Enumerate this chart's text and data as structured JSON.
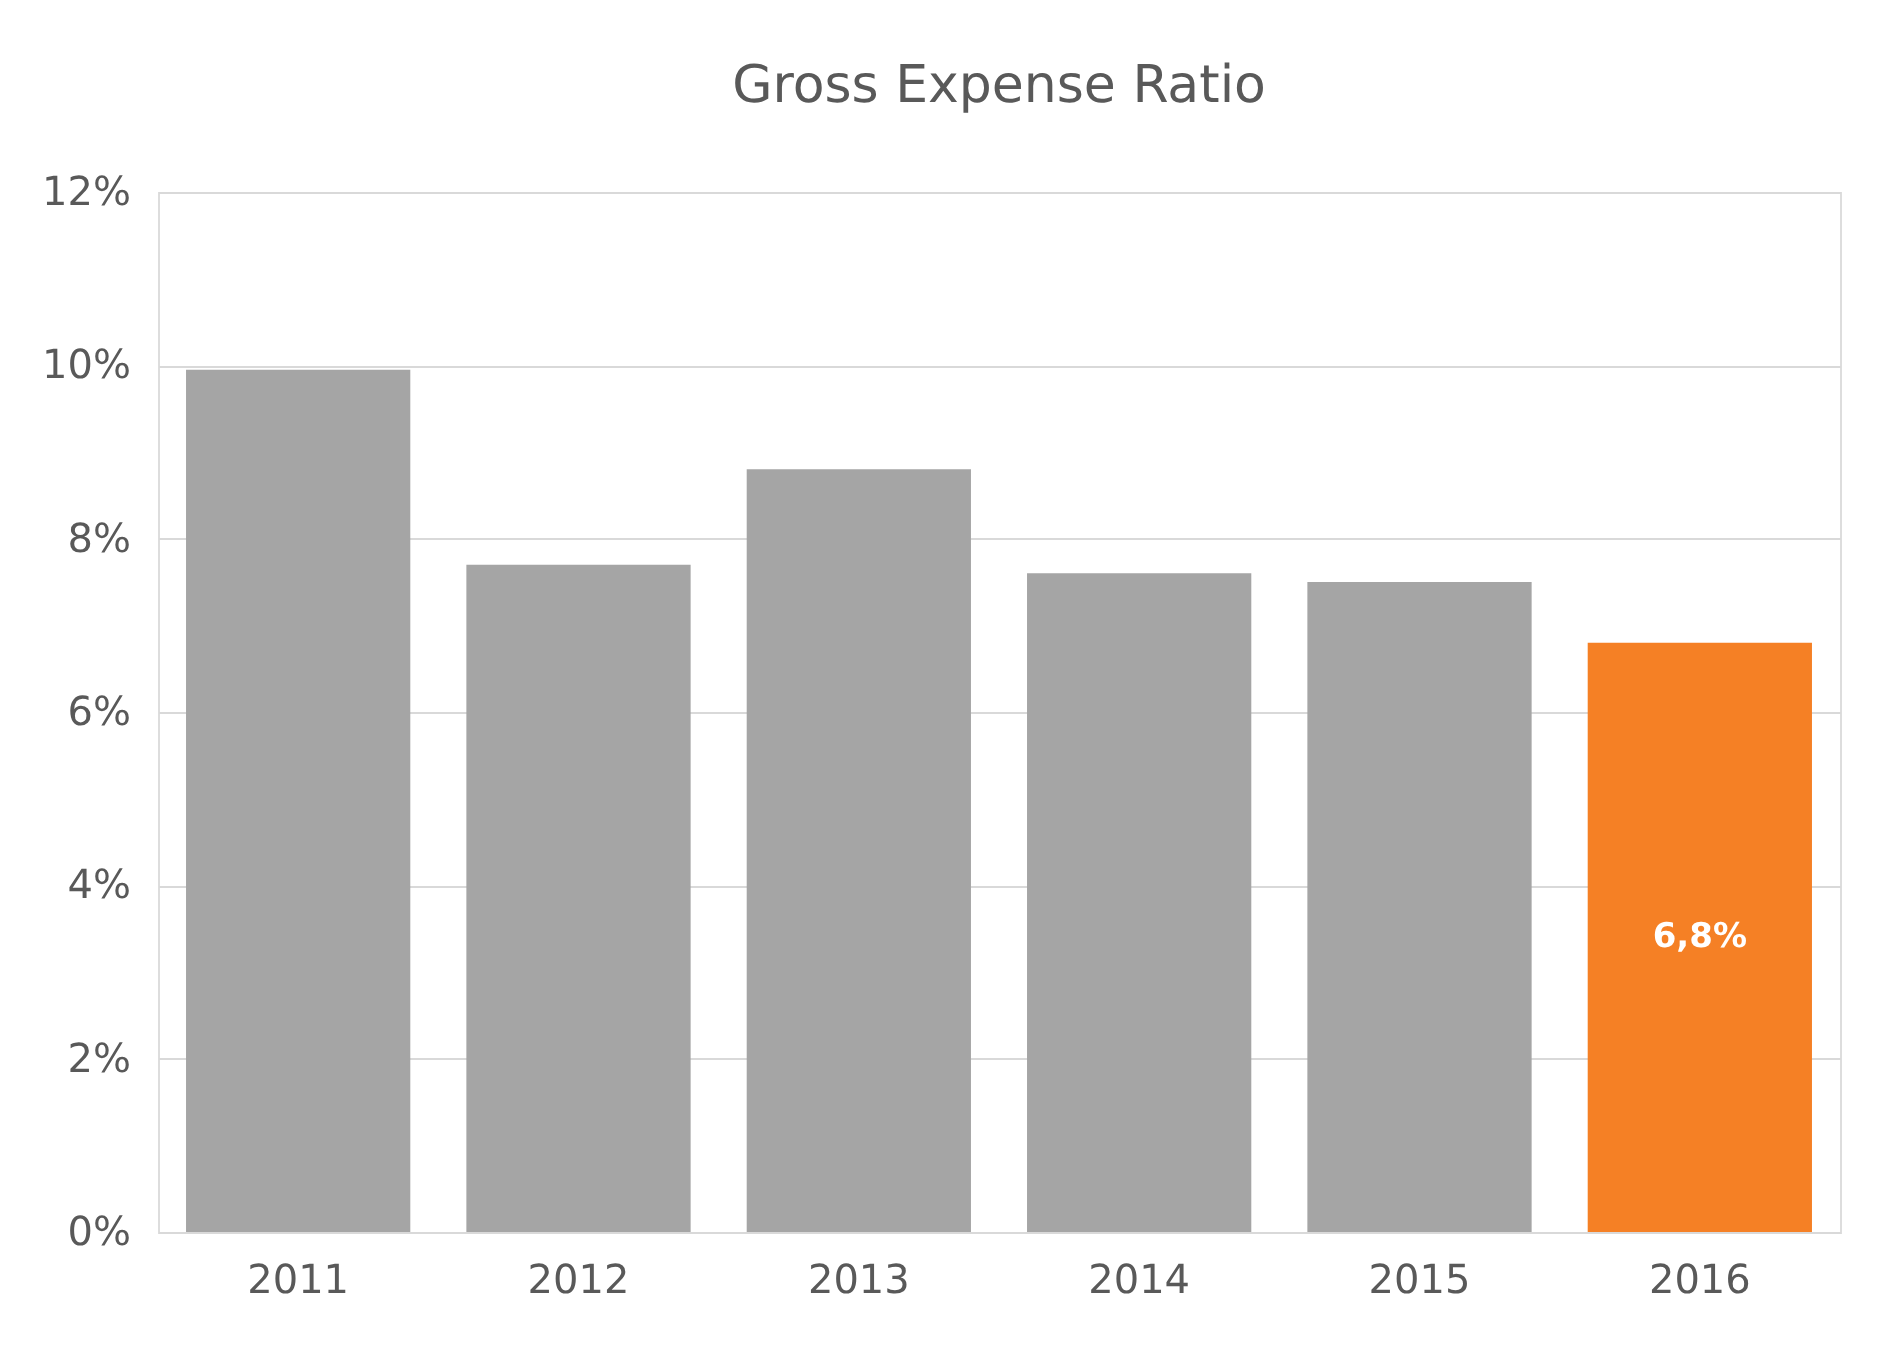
{
  "chart_data": {
    "type": "bar",
    "title": "Gross Expense Ratio",
    "categories": [
      "2011",
      "2012",
      "2013",
      "2014",
      "2015",
      "2016"
    ],
    "values": [
      9.95,
      7.7,
      8.8,
      7.6,
      7.5,
      6.8
    ],
    "colors": [
      "#a5a5a5",
      "#a5a5a5",
      "#a5a5a5",
      "#a5a5a5",
      "#a5a5a5",
      "#f58025"
    ],
    "value_labels": [
      null,
      null,
      null,
      null,
      null,
      "6,8%"
    ],
    "ylim": [
      0,
      12
    ],
    "yticks": [
      {
        "value": 0,
        "label": "0%"
      },
      {
        "value": 2,
        "label": "2%"
      },
      {
        "value": 4,
        "label": "4%"
      },
      {
        "value": 6,
        "label": "6%"
      },
      {
        "value": 8,
        "label": "8%"
      },
      {
        "value": 10,
        "label": "10%"
      },
      {
        "value": 12,
        "label": "12%"
      }
    ],
    "grid": "y"
  }
}
